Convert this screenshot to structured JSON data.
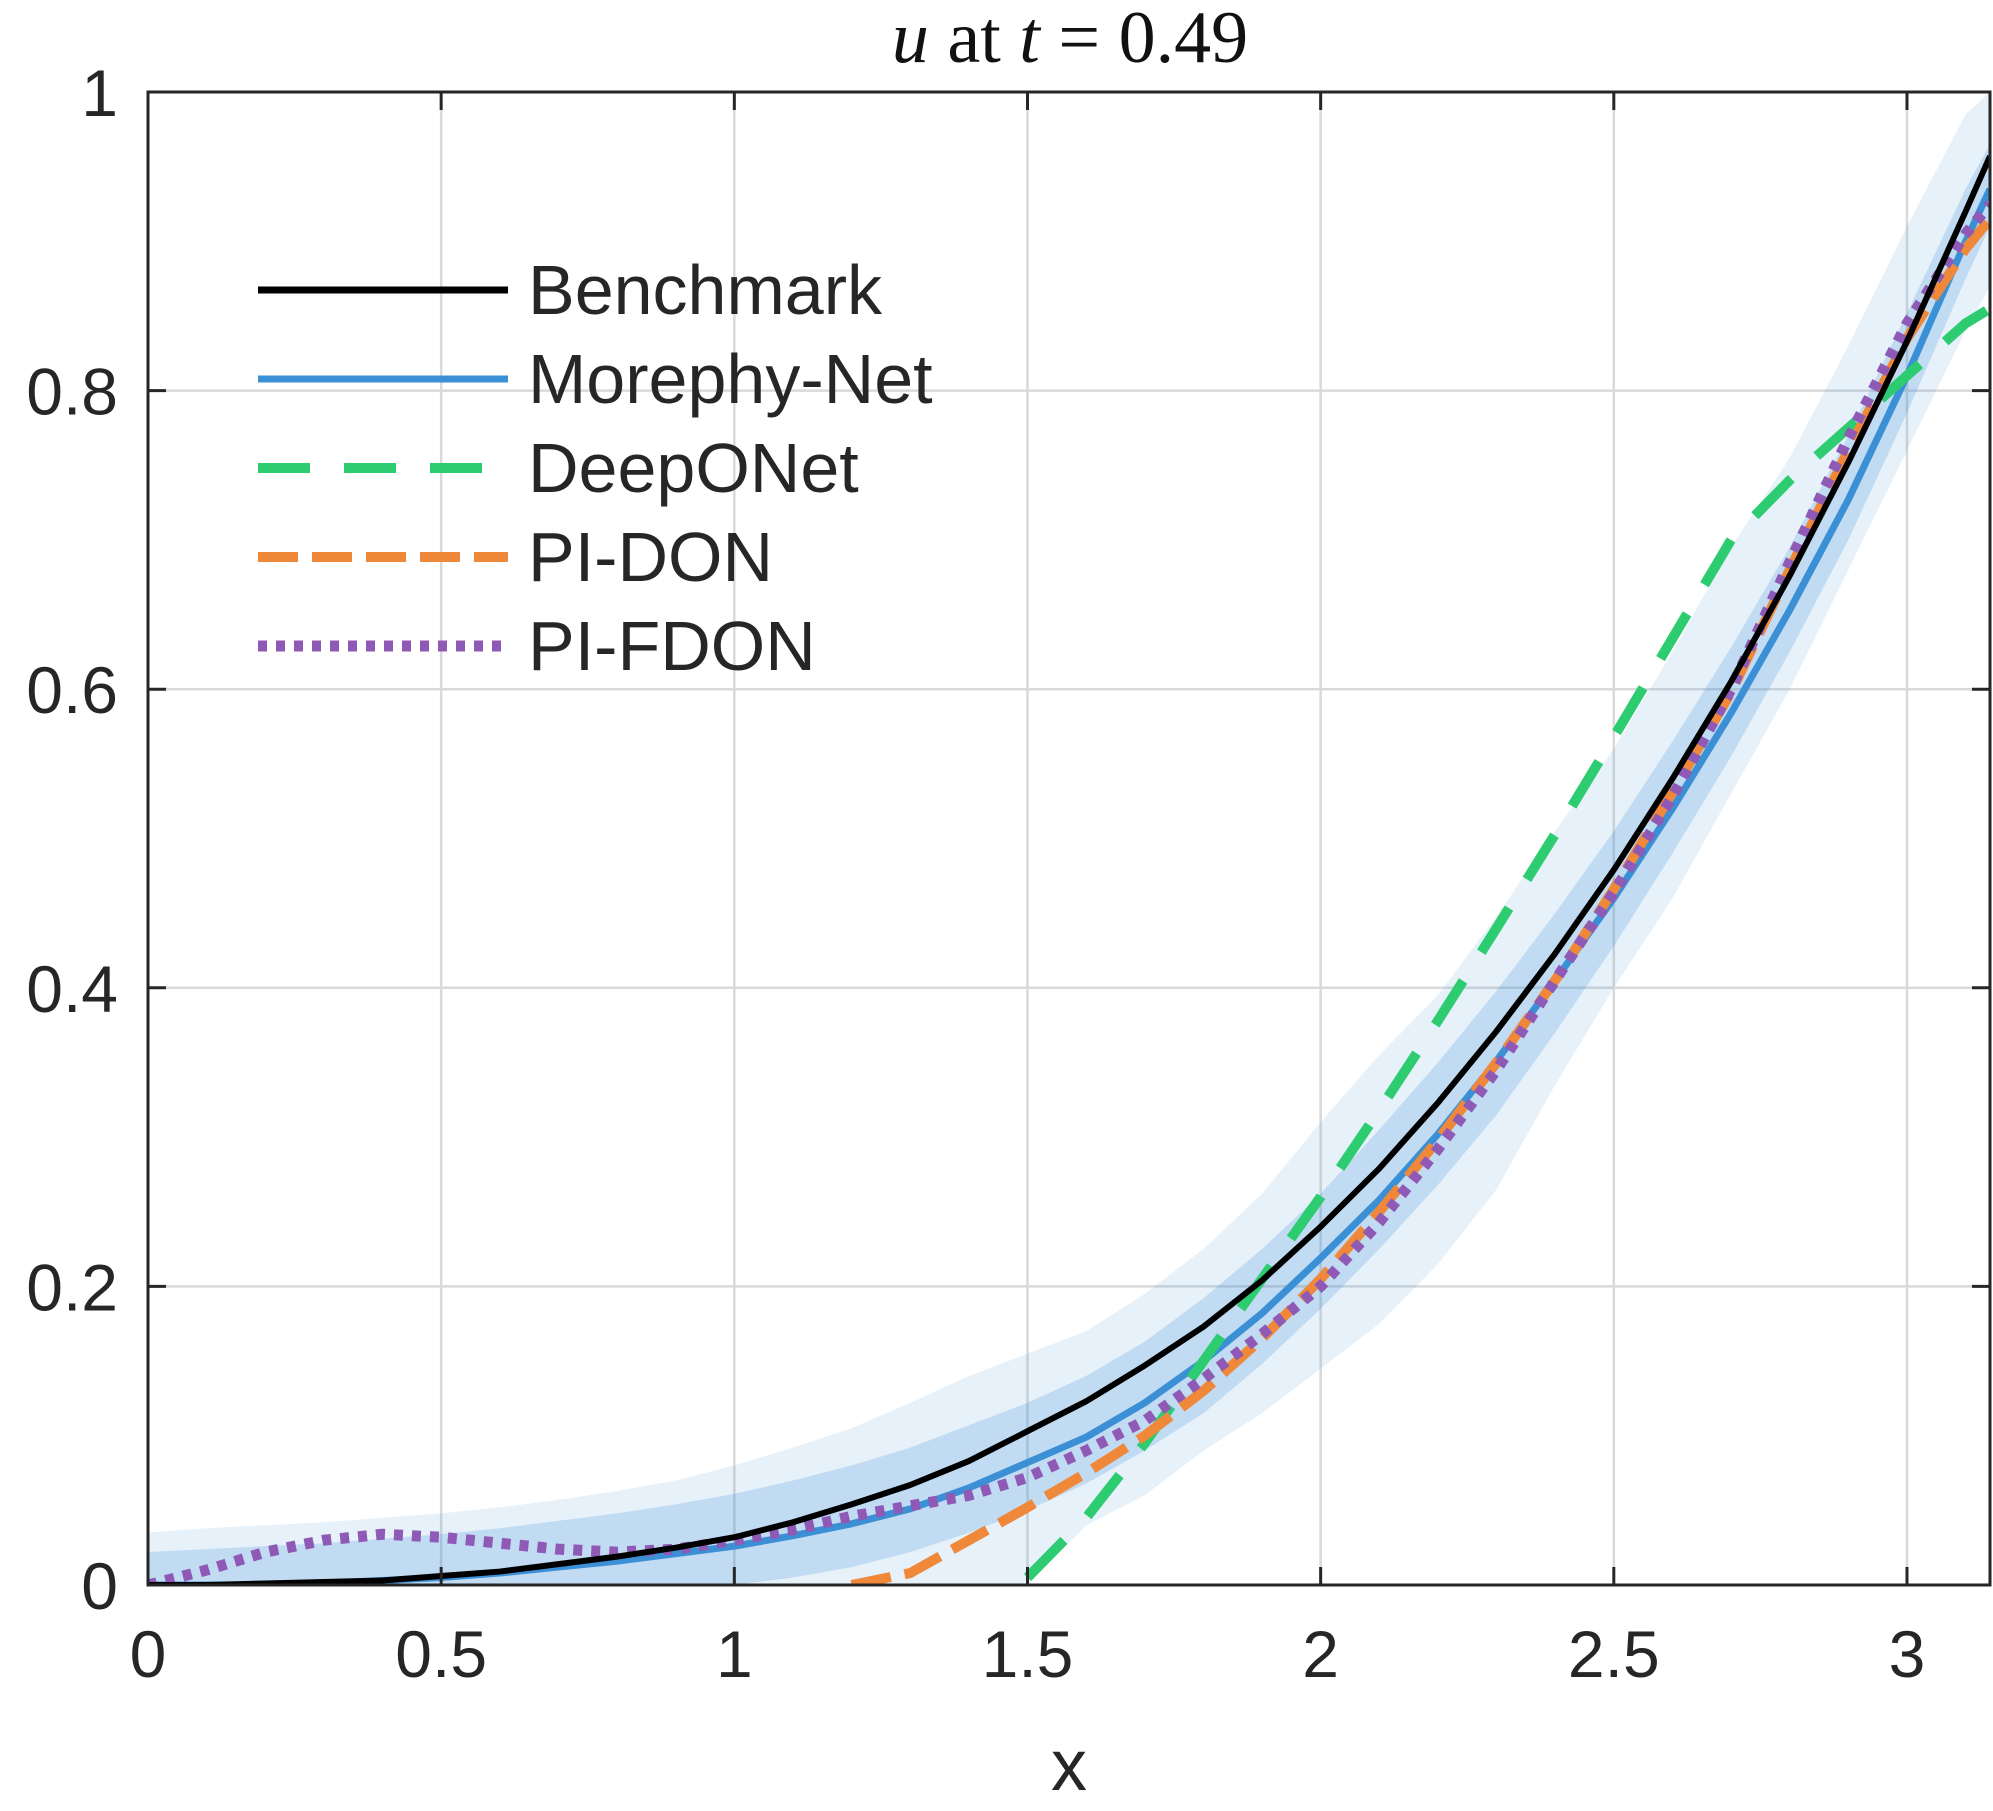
{
  "chart_data": {
    "type": "line",
    "title": {
      "var": "u",
      "mid": " at ",
      "tvar": "t",
      "rest": " = 0.49"
    },
    "xlabel": "x",
    "ylabel": "",
    "xlim": [
      0,
      3.1416
    ],
    "ylim": [
      0,
      1
    ],
    "xticks": [
      0,
      0.5,
      1,
      1.5,
      2,
      2.5,
      3
    ],
    "xtick_labels": [
      "0",
      "0.5",
      "1",
      "1.5",
      "2",
      "2.5",
      "3"
    ],
    "yticks": [
      0,
      0.2,
      0.4,
      0.6,
      0.8,
      1
    ],
    "ytick_labels": [
      "0",
      "0.2",
      "0.4",
      "0.6",
      "0.8",
      "1"
    ],
    "grid": true,
    "legend_position": "top-left",
    "legend_entries": [
      "Benchmark",
      "Morephy-Net",
      "DeepONet",
      "PI-DON",
      "PI-FDON"
    ],
    "x": [
      0,
      0.1,
      0.2,
      0.3,
      0.4,
      0.5,
      0.6,
      0.7,
      0.8,
      0.9,
      1.0,
      1.1,
      1.2,
      1.3,
      1.4,
      1.5,
      1.6,
      1.7,
      1.8,
      1.9,
      2.0,
      2.1,
      2.2,
      2.3,
      2.4,
      2.5,
      2.6,
      2.7,
      2.8,
      2.9,
      3.0,
      3.1,
      3.1416
    ],
    "series": [
      {
        "name": "Benchmark",
        "color": "#000000",
        "style": "solid",
        "values": [
          0.0,
          0.0,
          0.001,
          0.002,
          0.003,
          0.006,
          0.009,
          0.014,
          0.019,
          0.025,
          0.032,
          0.042,
          0.054,
          0.067,
          0.083,
          0.103,
          0.123,
          0.147,
          0.173,
          0.204,
          0.24,
          0.279,
          0.323,
          0.371,
          0.423,
          0.479,
          0.54,
          0.605,
          0.676,
          0.752,
          0.833,
          0.92,
          0.957
        ]
      },
      {
        "name": "Morephy-Net",
        "color": "#3a8fd5",
        "style": "solid",
        "values": [
          0.0,
          0.0,
          0.0,
          0.001,
          0.003,
          0.005,
          0.008,
          0.012,
          0.016,
          0.021,
          0.026,
          0.033,
          0.041,
          0.051,
          0.065,
          0.082,
          0.099,
          0.122,
          0.15,
          0.182,
          0.219,
          0.258,
          0.302,
          0.351,
          0.405,
          0.46,
          0.52,
          0.584,
          0.653,
          0.727,
          0.81,
          0.9,
          0.935
        ]
      },
      {
        "name": "DeepONet",
        "color": "#2ecc71",
        "style": "dashed",
        "values": [
          null,
          null,
          null,
          null,
          null,
          null,
          null,
          null,
          null,
          null,
          null,
          null,
          null,
          null,
          null,
          0.005,
          0.045,
          0.095,
          0.15,
          0.205,
          0.26,
          0.318,
          0.378,
          0.44,
          0.503,
          0.568,
          0.634,
          0.7,
          0.74,
          0.775,
          0.81,
          0.845,
          0.855
        ]
      },
      {
        "name": "PI-DON",
        "color": "#f0883a",
        "style": "dashdot",
        "values": [
          null,
          null,
          null,
          null,
          null,
          null,
          null,
          null,
          null,
          null,
          null,
          null,
          0.0,
          0.008,
          0.03,
          0.052,
          0.075,
          0.1,
          0.13,
          0.165,
          0.205,
          0.25,
          0.298,
          0.35,
          0.405,
          0.466,
          0.531,
          0.598,
          0.68,
          0.76,
          0.835,
          0.895,
          0.915
        ]
      },
      {
        "name": "PI-FDON",
        "color": "#8f59b6",
        "style": "dotted",
        "values": [
          0.0,
          0.01,
          0.022,
          0.03,
          0.034,
          0.032,
          0.028,
          0.024,
          0.022,
          0.024,
          0.03,
          0.037,
          0.046,
          0.053,
          0.06,
          0.072,
          0.09,
          0.11,
          0.138,
          0.168,
          0.2,
          0.243,
          0.292,
          0.345,
          0.405,
          0.464,
          0.528,
          0.6,
          0.685,
          0.768,
          0.845,
          0.905,
          0.925
        ]
      }
    ],
    "confidence_band": {
      "name": "Morephy-Net uncertainty",
      "color": "#3a8fd5",
      "outer_lower": [
        0.0,
        0.0,
        0.0,
        0.0,
        0.0,
        0.0,
        0.0,
        0.0,
        0.0,
        0.0,
        0.0,
        0.0,
        0.0,
        0.0,
        0.0,
        0.0,
        0.04,
        0.06,
        0.09,
        0.115,
        0.145,
        0.175,
        0.215,
        0.265,
        0.335,
        0.4,
        0.46,
        0.53,
        0.6,
        0.68,
        0.76,
        0.84,
        0.87
      ],
      "outer_upper": [
        0.035,
        0.038,
        0.04,
        0.042,
        0.045,
        0.048,
        0.052,
        0.057,
        0.063,
        0.07,
        0.08,
        0.092,
        0.105,
        0.122,
        0.14,
        0.155,
        0.17,
        0.195,
        0.225,
        0.262,
        0.31,
        0.355,
        0.395,
        0.448,
        0.505,
        0.56,
        0.625,
        0.695,
        0.755,
        0.83,
        0.91,
        0.985,
        1.0
      ],
      "inner_lower": [
        0.0,
        0.0,
        0.0,
        0.0,
        0.0,
        0.0,
        0.0,
        0.0,
        0.0,
        0.0,
        0.0,
        0.005,
        0.012,
        0.022,
        0.035,
        0.05,
        0.068,
        0.09,
        0.115,
        0.148,
        0.185,
        0.225,
        0.268,
        0.315,
        0.37,
        0.428,
        0.49,
        0.555,
        0.625,
        0.7,
        0.785,
        0.875,
        0.91
      ],
      "inner_upper": [
        0.022,
        0.024,
        0.026,
        0.028,
        0.031,
        0.034,
        0.038,
        0.043,
        0.048,
        0.054,
        0.061,
        0.07,
        0.08,
        0.092,
        0.107,
        0.122,
        0.14,
        0.163,
        0.192,
        0.225,
        0.262,
        0.305,
        0.35,
        0.398,
        0.45,
        0.505,
        0.565,
        0.628,
        0.695,
        0.77,
        0.852,
        0.935,
        0.965
      ]
    }
  }
}
